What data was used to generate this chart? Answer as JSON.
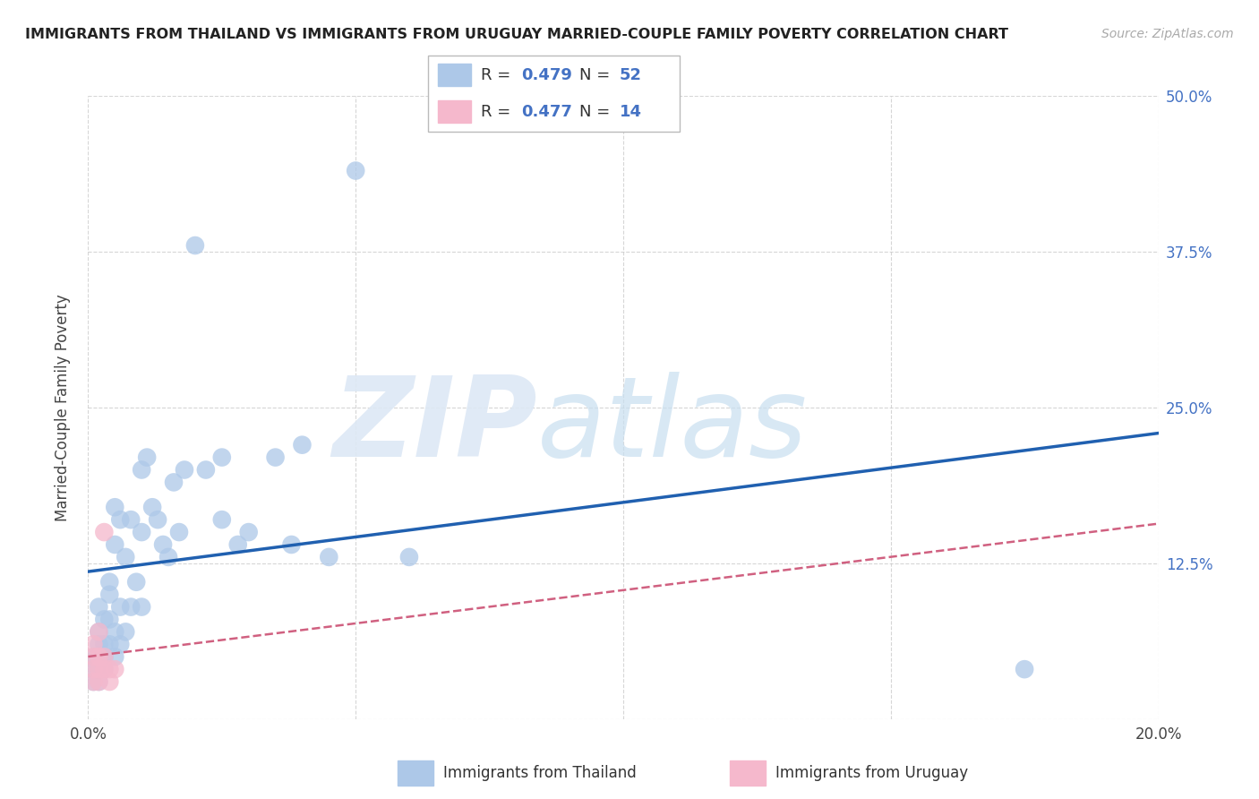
{
  "title": "IMMIGRANTS FROM THAILAND VS IMMIGRANTS FROM URUGUAY MARRIED-COUPLE FAMILY POVERTY CORRELATION CHART",
  "source": "Source: ZipAtlas.com",
  "ylabel": "Married-Couple Family Poverty",
  "xlim": [
    0.0,
    0.2
  ],
  "ylim": [
    0.0,
    0.5
  ],
  "xticks": [
    0.0,
    0.05,
    0.1,
    0.15,
    0.2
  ],
  "xtick_labels": [
    "0.0%",
    "",
    "",
    "",
    "20.0%"
  ],
  "ytick_labels": [
    "",
    "12.5%",
    "25.0%",
    "37.5%",
    "50.0%"
  ],
  "yticks": [
    0.0,
    0.125,
    0.25,
    0.375,
    0.5
  ],
  "thailand_r": 0.479,
  "thailand_n": 52,
  "uruguay_r": 0.477,
  "uruguay_n": 14,
  "thailand_color": "#adc8e8",
  "uruguay_color": "#f5b8cc",
  "thailand_line_color": "#2060b0",
  "uruguay_line_color": "#d06080",
  "watermark_zip": "ZIP",
  "watermark_atlas": "atlas",
  "thailand_x": [
    0.001,
    0.001,
    0.001,
    0.002,
    0.002,
    0.002,
    0.002,
    0.002,
    0.003,
    0.003,
    0.003,
    0.003,
    0.004,
    0.004,
    0.004,
    0.004,
    0.005,
    0.005,
    0.005,
    0.005,
    0.006,
    0.006,
    0.006,
    0.007,
    0.007,
    0.008,
    0.008,
    0.009,
    0.01,
    0.01,
    0.01,
    0.011,
    0.012,
    0.013,
    0.014,
    0.015,
    0.016,
    0.017,
    0.018,
    0.02,
    0.022,
    0.025,
    0.025,
    0.028,
    0.03,
    0.035,
    0.038,
    0.04,
    0.045,
    0.05,
    0.06,
    0.175
  ],
  "thailand_y": [
    0.03,
    0.04,
    0.05,
    0.03,
    0.04,
    0.06,
    0.07,
    0.09,
    0.04,
    0.05,
    0.06,
    0.08,
    0.06,
    0.08,
    0.1,
    0.11,
    0.05,
    0.07,
    0.14,
    0.17,
    0.06,
    0.09,
    0.16,
    0.07,
    0.13,
    0.09,
    0.16,
    0.11,
    0.09,
    0.15,
    0.2,
    0.21,
    0.17,
    0.16,
    0.14,
    0.13,
    0.19,
    0.15,
    0.2,
    0.38,
    0.2,
    0.16,
    0.21,
    0.14,
    0.15,
    0.21,
    0.14,
    0.22,
    0.13,
    0.44,
    0.13,
    0.04
  ],
  "uruguay_x": [
    0.001,
    0.001,
    0.001,
    0.001,
    0.002,
    0.002,
    0.002,
    0.002,
    0.003,
    0.003,
    0.003,
    0.004,
    0.004,
    0.005
  ],
  "uruguay_y": [
    0.03,
    0.04,
    0.05,
    0.06,
    0.03,
    0.04,
    0.05,
    0.07,
    0.04,
    0.05,
    0.15,
    0.04,
    0.03,
    0.04
  ],
  "background_color": "#ffffff",
  "grid_color": "#cccccc"
}
